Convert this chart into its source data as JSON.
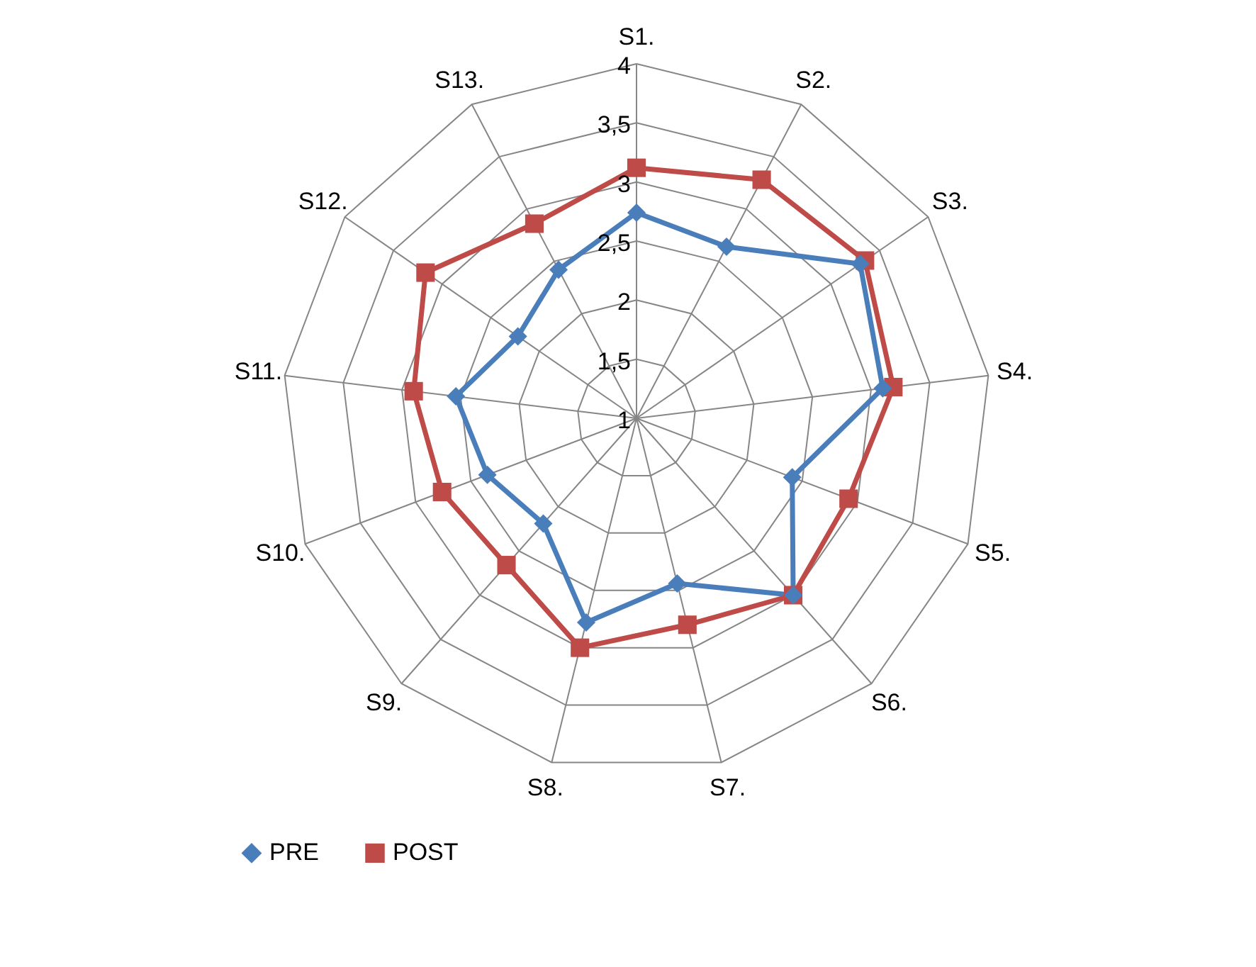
{
  "chart_data": {
    "type": "radar",
    "categories": [
      "S1.",
      "S2.",
      "S3.",
      "S4.",
      "S5.",
      "S6.",
      "S7.",
      "S8.",
      "S9.",
      "S10.",
      "S11.",
      "S12.",
      "S13."
    ],
    "ylim": [
      1,
      4
    ],
    "yticks": [
      1,
      {
        "value": 1.5,
        "label": "1,5"
      },
      2,
      {
        "value": 2.5,
        "label": "2,5"
      },
      3,
      {
        "value": 3.5,
        "label": "3,5"
      },
      4
    ],
    "grid": true,
    "legend": "bottom",
    "line_style": "solid",
    "series": [
      {
        "name": "PRE",
        "color": "#4a7ebb",
        "marker": "diamond",
        "values": [
          2.74,
          2.64,
          3.3,
          3.1,
          2.41,
          3.0,
          2.44,
          2.78,
          2.19,
          2.35,
          2.54,
          2.22,
          2.42
        ]
      },
      {
        "name": "POST",
        "color": "#be4b48",
        "marker": "square",
        "values": [
          3.12,
          3.28,
          3.35,
          3.19,
          2.92,
          3.0,
          2.8,
          3.0,
          2.66,
          2.76,
          2.9,
          3.17,
          2.86
        ]
      }
    ]
  }
}
